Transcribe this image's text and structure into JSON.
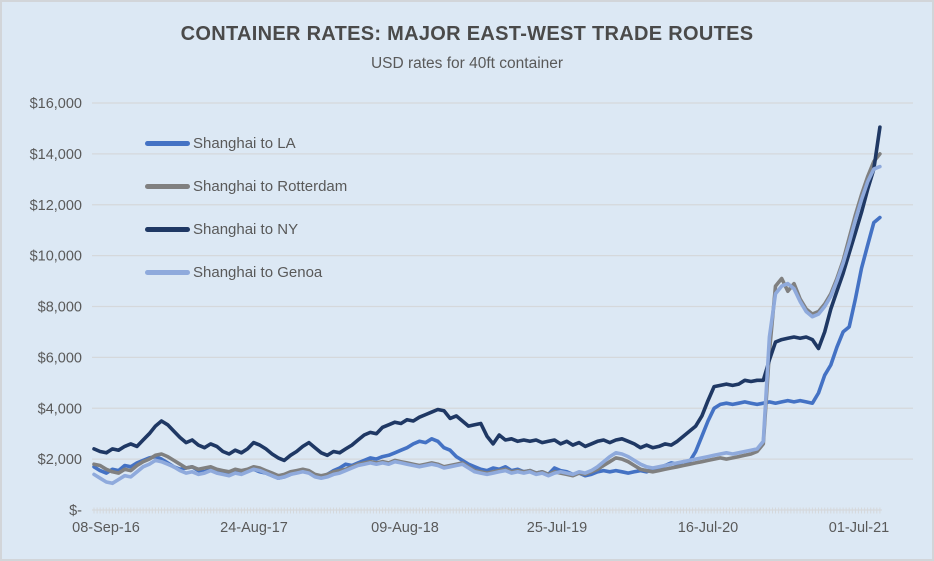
{
  "chart_data": {
    "type": "line",
    "title": "CONTAINER RATES: MAJOR EAST-WEST TRADE ROUTES",
    "subtitle": "USD rates for 40ft container",
    "grid": true,
    "legend_position": "top-left-inside",
    "ylim": [
      0,
      16000
    ],
    "y_tick_step": 2000,
    "y_tick_labels": [
      "$-",
      "$2,000",
      "$4,000",
      "$6,000",
      "$8,000",
      "$10,000",
      "$12,000",
      "$14,000",
      "$16,000"
    ],
    "x_tick_labels": [
      "08-Sep-16",
      "24-Aug-17",
      "09-Aug-18",
      "25-Jul-19",
      "16-Jul-20",
      "01-Jul-21"
    ],
    "x_tick_weeks": [
      0,
      50,
      100,
      150,
      200,
      250
    ],
    "x_axis_span_weeks": 266,
    "interval_weeks": 2,
    "colors": {
      "background": "#dce8f4",
      "gridline": "#d5d8db",
      "axis_text": "#595959",
      "title_text": "#4a4a4a"
    },
    "series": [
      {
        "name": "Shanghai to LA",
        "color": "#4472c4",
        "values": [
          1700,
          1550,
          1450,
          1600,
          1550,
          1750,
          1700,
          1850,
          1950,
          2050,
          2100,
          2000,
          1850,
          1700,
          1600,
          1650,
          1700,
          1550,
          1500,
          1600,
          1550,
          1450,
          1400,
          1500,
          1450,
          1550,
          1600,
          1500,
          1450,
          1350,
          1250,
          1300,
          1400,
          1500,
          1550,
          1500,
          1350,
          1300,
          1400,
          1550,
          1650,
          1800,
          1750,
          1850,
          1950,
          2050,
          2000,
          2100,
          2150,
          2250,
          2350,
          2450,
          2600,
          2700,
          2650,
          2800,
          2700,
          2450,
          2350,
          2100,
          1950,
          1800,
          1700,
          1600,
          1550,
          1650,
          1600,
          1700,
          1550,
          1600,
          1500,
          1550,
          1450,
          1500,
          1400,
          1650,
          1550,
          1500,
          1400,
          1450,
          1350,
          1400,
          1500,
          1550,
          1500,
          1550,
          1500,
          1450,
          1500,
          1550,
          1500,
          1600,
          1650,
          1750,
          1850,
          1800,
          1900,
          1900,
          2300,
          2900,
          3500,
          4000,
          4150,
          4200,
          4150,
          4200,
          4250,
          4200,
          4150,
          4200,
          4250,
          4200,
          4250,
          4300,
          4250,
          4300,
          4250,
          4200,
          4600,
          5300,
          5700,
          6400,
          7000,
          7200,
          8300,
          9500,
          10400,
          11300,
          11500
        ]
      },
      {
        "name": "Shanghai to Rotterdam",
        "color": "#808080",
        "values": [
          1800,
          1750,
          1600,
          1500,
          1450,
          1600,
          1550,
          1750,
          1900,
          2000,
          2150,
          2200,
          2100,
          1950,
          1800,
          1650,
          1700,
          1600,
          1650,
          1700,
          1600,
          1550,
          1500,
          1600,
          1550,
          1600,
          1700,
          1650,
          1550,
          1450,
          1350,
          1400,
          1500,
          1550,
          1600,
          1550,
          1400,
          1350,
          1400,
          1500,
          1550,
          1600,
          1700,
          1800,
          1850,
          1900,
          1850,
          1900,
          1850,
          1950,
          1900,
          1850,
          1800,
          1750,
          1800,
          1850,
          1800,
          1700,
          1750,
          1800,
          1850,
          1700,
          1550,
          1500,
          1450,
          1500,
          1550,
          1600,
          1500,
          1550,
          1500,
          1550,
          1450,
          1500,
          1400,
          1500,
          1450,
          1400,
          1350,
          1450,
          1400,
          1500,
          1600,
          1750,
          1900,
          2050,
          2000,
          1900,
          1750,
          1600,
          1550,
          1500,
          1550,
          1600,
          1650,
          1700,
          1750,
          1800,
          1850,
          1900,
          1950,
          2000,
          2050,
          2000,
          2050,
          2100,
          2150,
          2200,
          2300,
          2600,
          6200,
          8800,
          9100,
          8600,
          8900,
          8300,
          7900,
          7700,
          7800,
          8100,
          8500,
          9100,
          9800,
          10700,
          11600,
          12400,
          13100,
          13700,
          14000
        ]
      },
      {
        "name": "Shanghai to NY",
        "color": "#1f3864",
        "values": [
          2400,
          2300,
          2250,
          2400,
          2350,
          2500,
          2600,
          2500,
          2750,
          3000,
          3300,
          3500,
          3350,
          3100,
          2850,
          2650,
          2750,
          2550,
          2450,
          2600,
          2500,
          2300,
          2200,
          2350,
          2250,
          2400,
          2650,
          2550,
          2400,
          2200,
          2050,
          1950,
          2150,
          2300,
          2500,
          2650,
          2450,
          2250,
          2150,
          2300,
          2250,
          2400,
          2550,
          2750,
          2950,
          3050,
          3000,
          3250,
          3350,
          3450,
          3400,
          3550,
          3500,
          3650,
          3750,
          3850,
          3950,
          3900,
          3600,
          3700,
          3500,
          3300,
          3350,
          3400,
          2900,
          2600,
          2950,
          2750,
          2800,
          2700,
          2750,
          2700,
          2750,
          2650,
          2700,
          2750,
          2600,
          2700,
          2550,
          2650,
          2500,
          2600,
          2700,
          2750,
          2650,
          2750,
          2800,
          2700,
          2600,
          2450,
          2550,
          2450,
          2500,
          2600,
          2550,
          2700,
          2900,
          3100,
          3300,
          3700,
          4300,
          4850,
          4900,
          4950,
          4900,
          4950,
          5100,
          5050,
          5100,
          5100,
          5900,
          6600,
          6700,
          6750,
          6800,
          6750,
          6800,
          6700,
          6350,
          7000,
          7900,
          8600,
          9300,
          10100,
          10900,
          11700,
          12600,
          13400,
          15050
        ]
      },
      {
        "name": "Shanghai to Genoa",
        "color": "#8faadc",
        "values": [
          1400,
          1250,
          1100,
          1050,
          1200,
          1350,
          1300,
          1500,
          1700,
          1800,
          1950,
          1900,
          1800,
          1700,
          1550,
          1450,
          1500,
          1400,
          1450,
          1550,
          1450,
          1400,
          1350,
          1450,
          1400,
          1500,
          1600,
          1550,
          1450,
          1350,
          1250,
          1300,
          1400,
          1450,
          1500,
          1450,
          1300,
          1250,
          1300,
          1400,
          1450,
          1550,
          1650,
          1750,
          1800,
          1850,
          1800,
          1850,
          1800,
          1900,
          1850,
          1800,
          1750,
          1700,
          1750,
          1800,
          1750,
          1650,
          1700,
          1750,
          1800,
          1650,
          1500,
          1450,
          1400,
          1450,
          1500,
          1550,
          1450,
          1500,
          1450,
          1500,
          1400,
          1450,
          1350,
          1450,
          1500,
          1450,
          1400,
          1500,
          1450,
          1550,
          1700,
          1900,
          2100,
          2250,
          2200,
          2100,
          1950,
          1800,
          1700,
          1650,
          1700,
          1750,
          1800,
          1850,
          1900,
          1950,
          2000,
          2050,
          2100,
          2150,
          2200,
          2250,
          2200,
          2250,
          2300,
          2350,
          2400,
          2700,
          6800,
          8500,
          8800,
          8900,
          8700,
          8200,
          7800,
          7600,
          7700,
          8000,
          8400,
          9000,
          9700,
          10500,
          11400,
          12200,
          12900,
          13400,
          13500
        ]
      }
    ]
  }
}
